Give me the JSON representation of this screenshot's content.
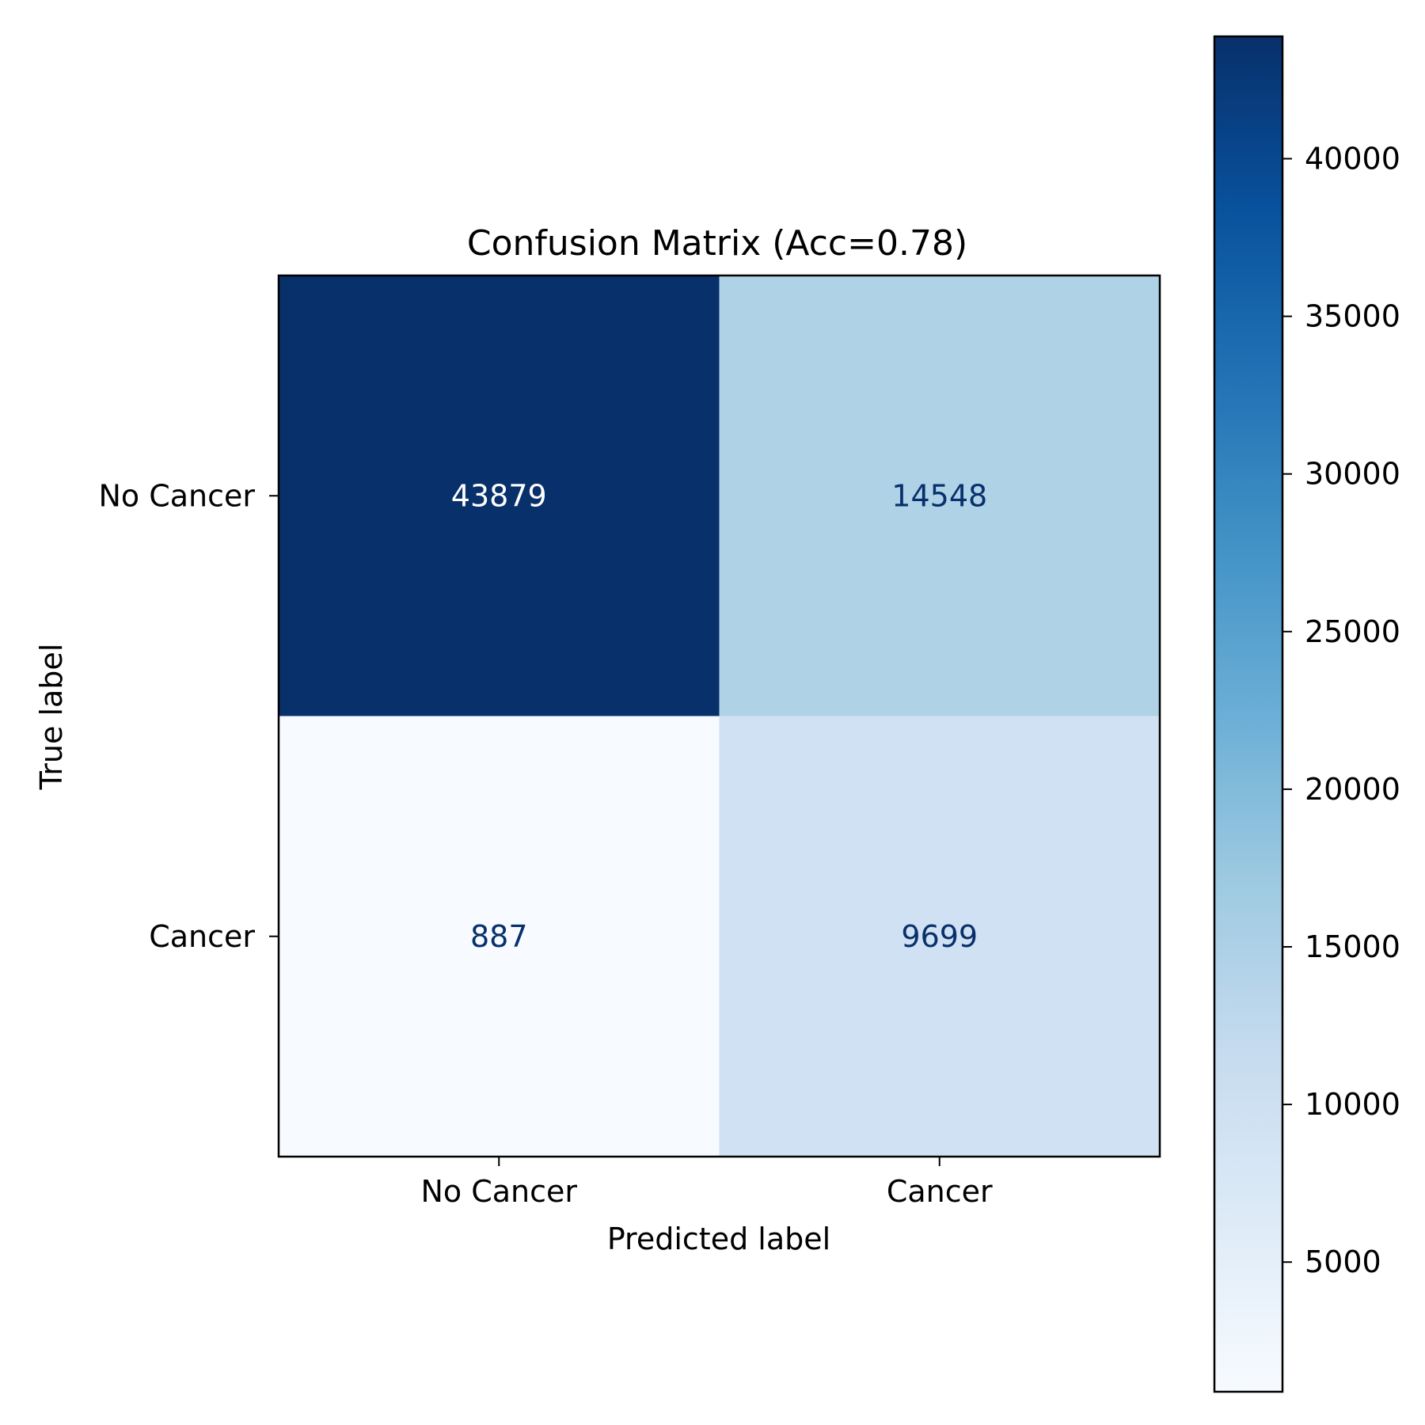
{
  "chart_data": {
    "type": "heatmap",
    "title": "Confusion Matrix (Acc=0.78)",
    "xlabel": "Predicted label",
    "ylabel": "True label",
    "x_categories": [
      "No Cancer",
      "Cancer"
    ],
    "y_categories": [
      "No Cancer",
      "Cancer"
    ],
    "values": [
      [
        43879,
        14548
      ],
      [
        887,
        9699
      ]
    ],
    "colormap": "Blues",
    "colorbar": {
      "range": [
        887,
        43879
      ],
      "ticks": [
        5000,
        10000,
        15000,
        20000,
        25000,
        30000,
        35000,
        40000
      ],
      "tick_labels": [
        "5000",
        "10000",
        "15000",
        "20000",
        "25000",
        "30000",
        "35000",
        "40000"
      ]
    },
    "text_colors": {
      "on_dark": "#ffffff",
      "on_light": "#08306b"
    },
    "grid": false
  }
}
